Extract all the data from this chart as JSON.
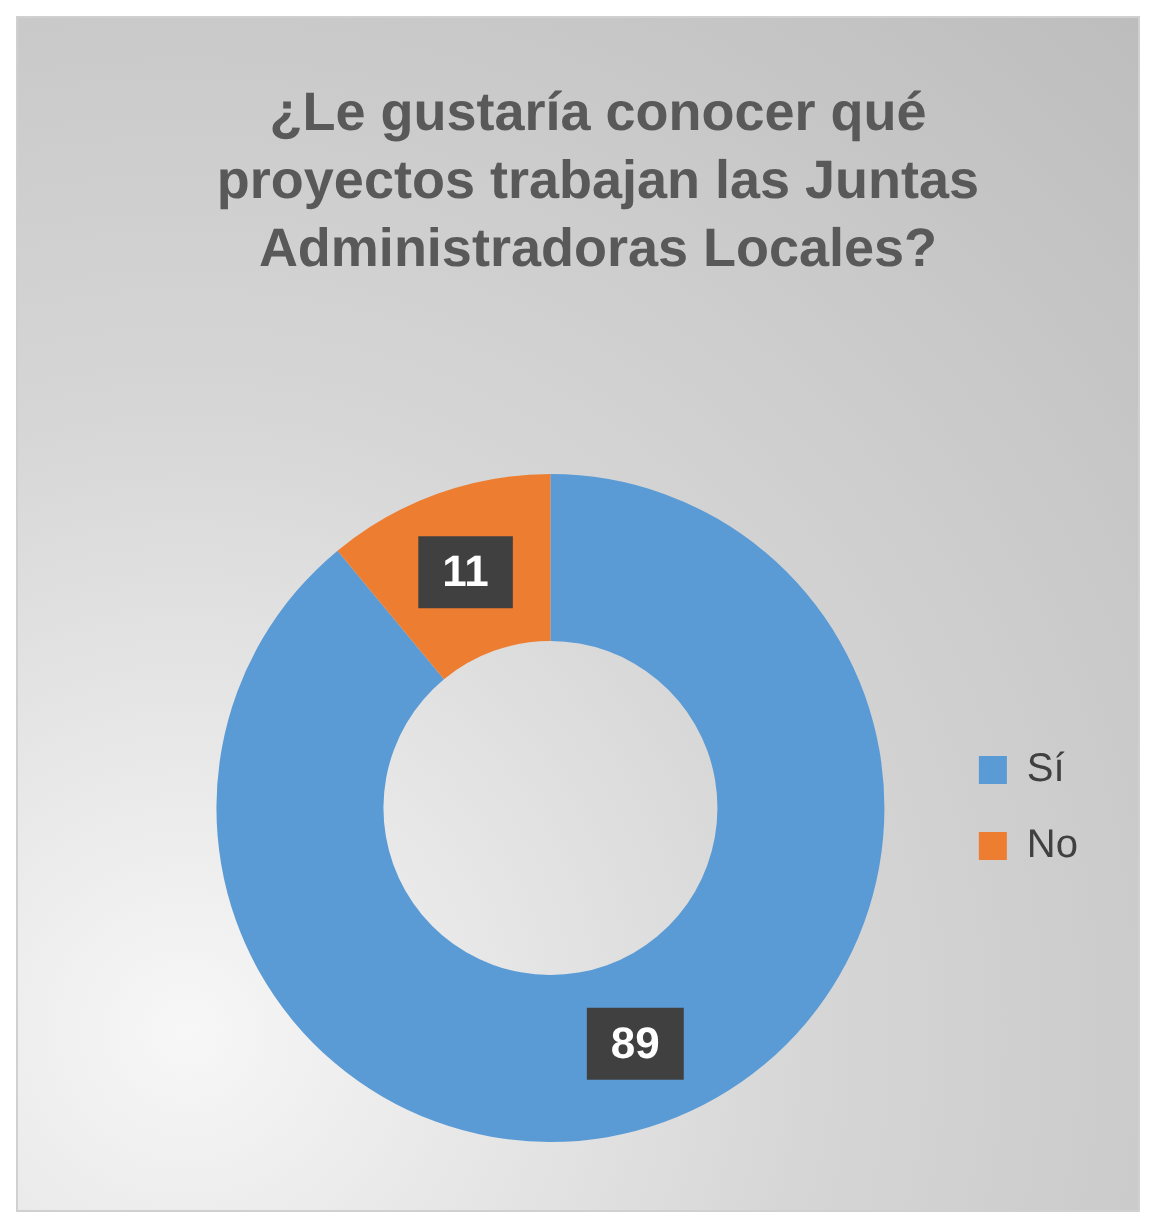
{
  "chart_data": {
    "type": "donut",
    "title": "¿Le gustaría conocer qué proyectos trabajan las Juntas Administradoras Locales?",
    "categories": [
      "Sí",
      "No"
    ],
    "values": [
      89,
      11
    ],
    "colors": [
      "#5b9bd5",
      "#ed7d31"
    ],
    "legend": "right",
    "data_labels": true
  }
}
